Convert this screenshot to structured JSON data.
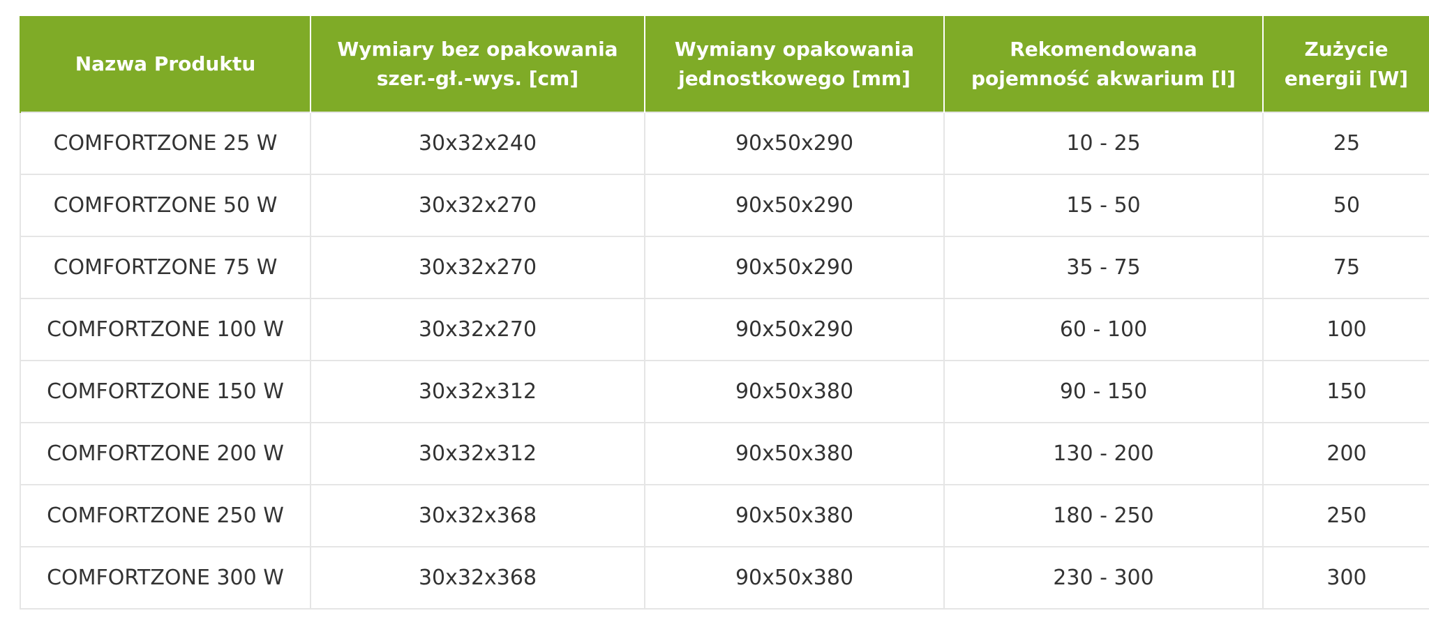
{
  "table": {
    "headers": [
      "Nazwa Produktu",
      "Wymiary bez opakowania\nszer.-gł.-wys. [cm]",
      "Wymiany opakowania\njednostkowego [mm]",
      "Rekomendowana\npojemność akwarium [l]",
      "Zużycie\nenergii [W]"
    ],
    "rows": [
      [
        "COMFORTZONE 25 W",
        "30x32x240",
        "90x50x290",
        "10 - 25",
        "25"
      ],
      [
        "COMFORTZONE 50 W",
        "30x32x270",
        "90x50x290",
        "15 - 50",
        "50"
      ],
      [
        "COMFORTZONE 75 W",
        "30x32x270",
        "90x50x290",
        "35 - 75",
        "75"
      ],
      [
        "COMFORTZONE 100 W",
        "30x32x270",
        "90x50x290",
        "60 - 100",
        "100"
      ],
      [
        "COMFORTZONE 150 W",
        "30x32x312",
        "90x50x380",
        "90 - 150",
        "150"
      ],
      [
        "COMFORTZONE 200 W",
        "30x32x312",
        "90x50x380",
        "130 - 200",
        "200"
      ],
      [
        "COMFORTZONE 250 W",
        "30x32x368",
        "90x50x380",
        "180 - 250",
        "250"
      ],
      [
        "COMFORTZONE 300 W",
        "30x32x368",
        "90x50x380",
        "230 - 300",
        "300"
      ]
    ]
  },
  "colors": {
    "header_bg": "#7fab27",
    "header_text": "#ffffff",
    "cell_text": "#333333",
    "border": "#e5e5e5"
  }
}
